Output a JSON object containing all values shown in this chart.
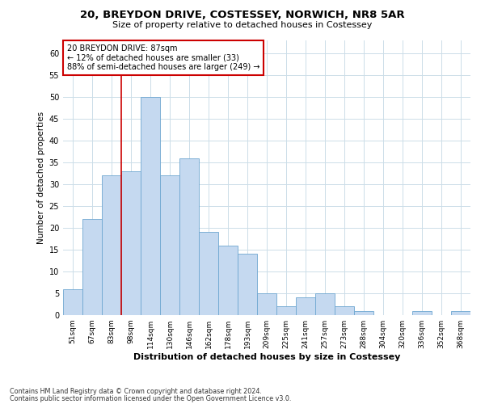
{
  "title1": "20, BREYDON DRIVE, COSTESSEY, NORWICH, NR8 5AR",
  "title2": "Size of property relative to detached houses in Costessey",
  "xlabel": "Distribution of detached houses by size in Costessey",
  "ylabel": "Number of detached properties",
  "bar_labels": [
    "51sqm",
    "67sqm",
    "83sqm",
    "98sqm",
    "114sqm",
    "130sqm",
    "146sqm",
    "162sqm",
    "178sqm",
    "193sqm",
    "209sqm",
    "225sqm",
    "241sqm",
    "257sqm",
    "273sqm",
    "288sqm",
    "304sqm",
    "320sqm",
    "336sqm",
    "352sqm",
    "368sqm"
  ],
  "bar_values": [
    6,
    22,
    32,
    33,
    50,
    32,
    36,
    19,
    16,
    14,
    5,
    2,
    4,
    5,
    2,
    1,
    0,
    0,
    1,
    0,
    1
  ],
  "bar_color": "#c5d9f0",
  "bar_edge_color": "#6ea6d0",
  "vline_color": "#cc0000",
  "vline_x": 2.5,
  "annotation_title": "20 BREYDON DRIVE: 87sqm",
  "annotation_line1": "← 12% of detached houses are smaller (33)",
  "annotation_line2": "88% of semi-detached houses are larger (249) →",
  "annotation_box_edgecolor": "#cc0000",
  "ylim_max": 63,
  "yticks": [
    0,
    5,
    10,
    15,
    20,
    25,
    30,
    35,
    40,
    45,
    50,
    55,
    60
  ],
  "footnote1": "Contains HM Land Registry data © Crown copyright and database right 2024.",
  "footnote2": "Contains public sector information licensed under the Open Government Licence v3.0.",
  "background_color": "#ffffff",
  "grid_color": "#ccdde8"
}
